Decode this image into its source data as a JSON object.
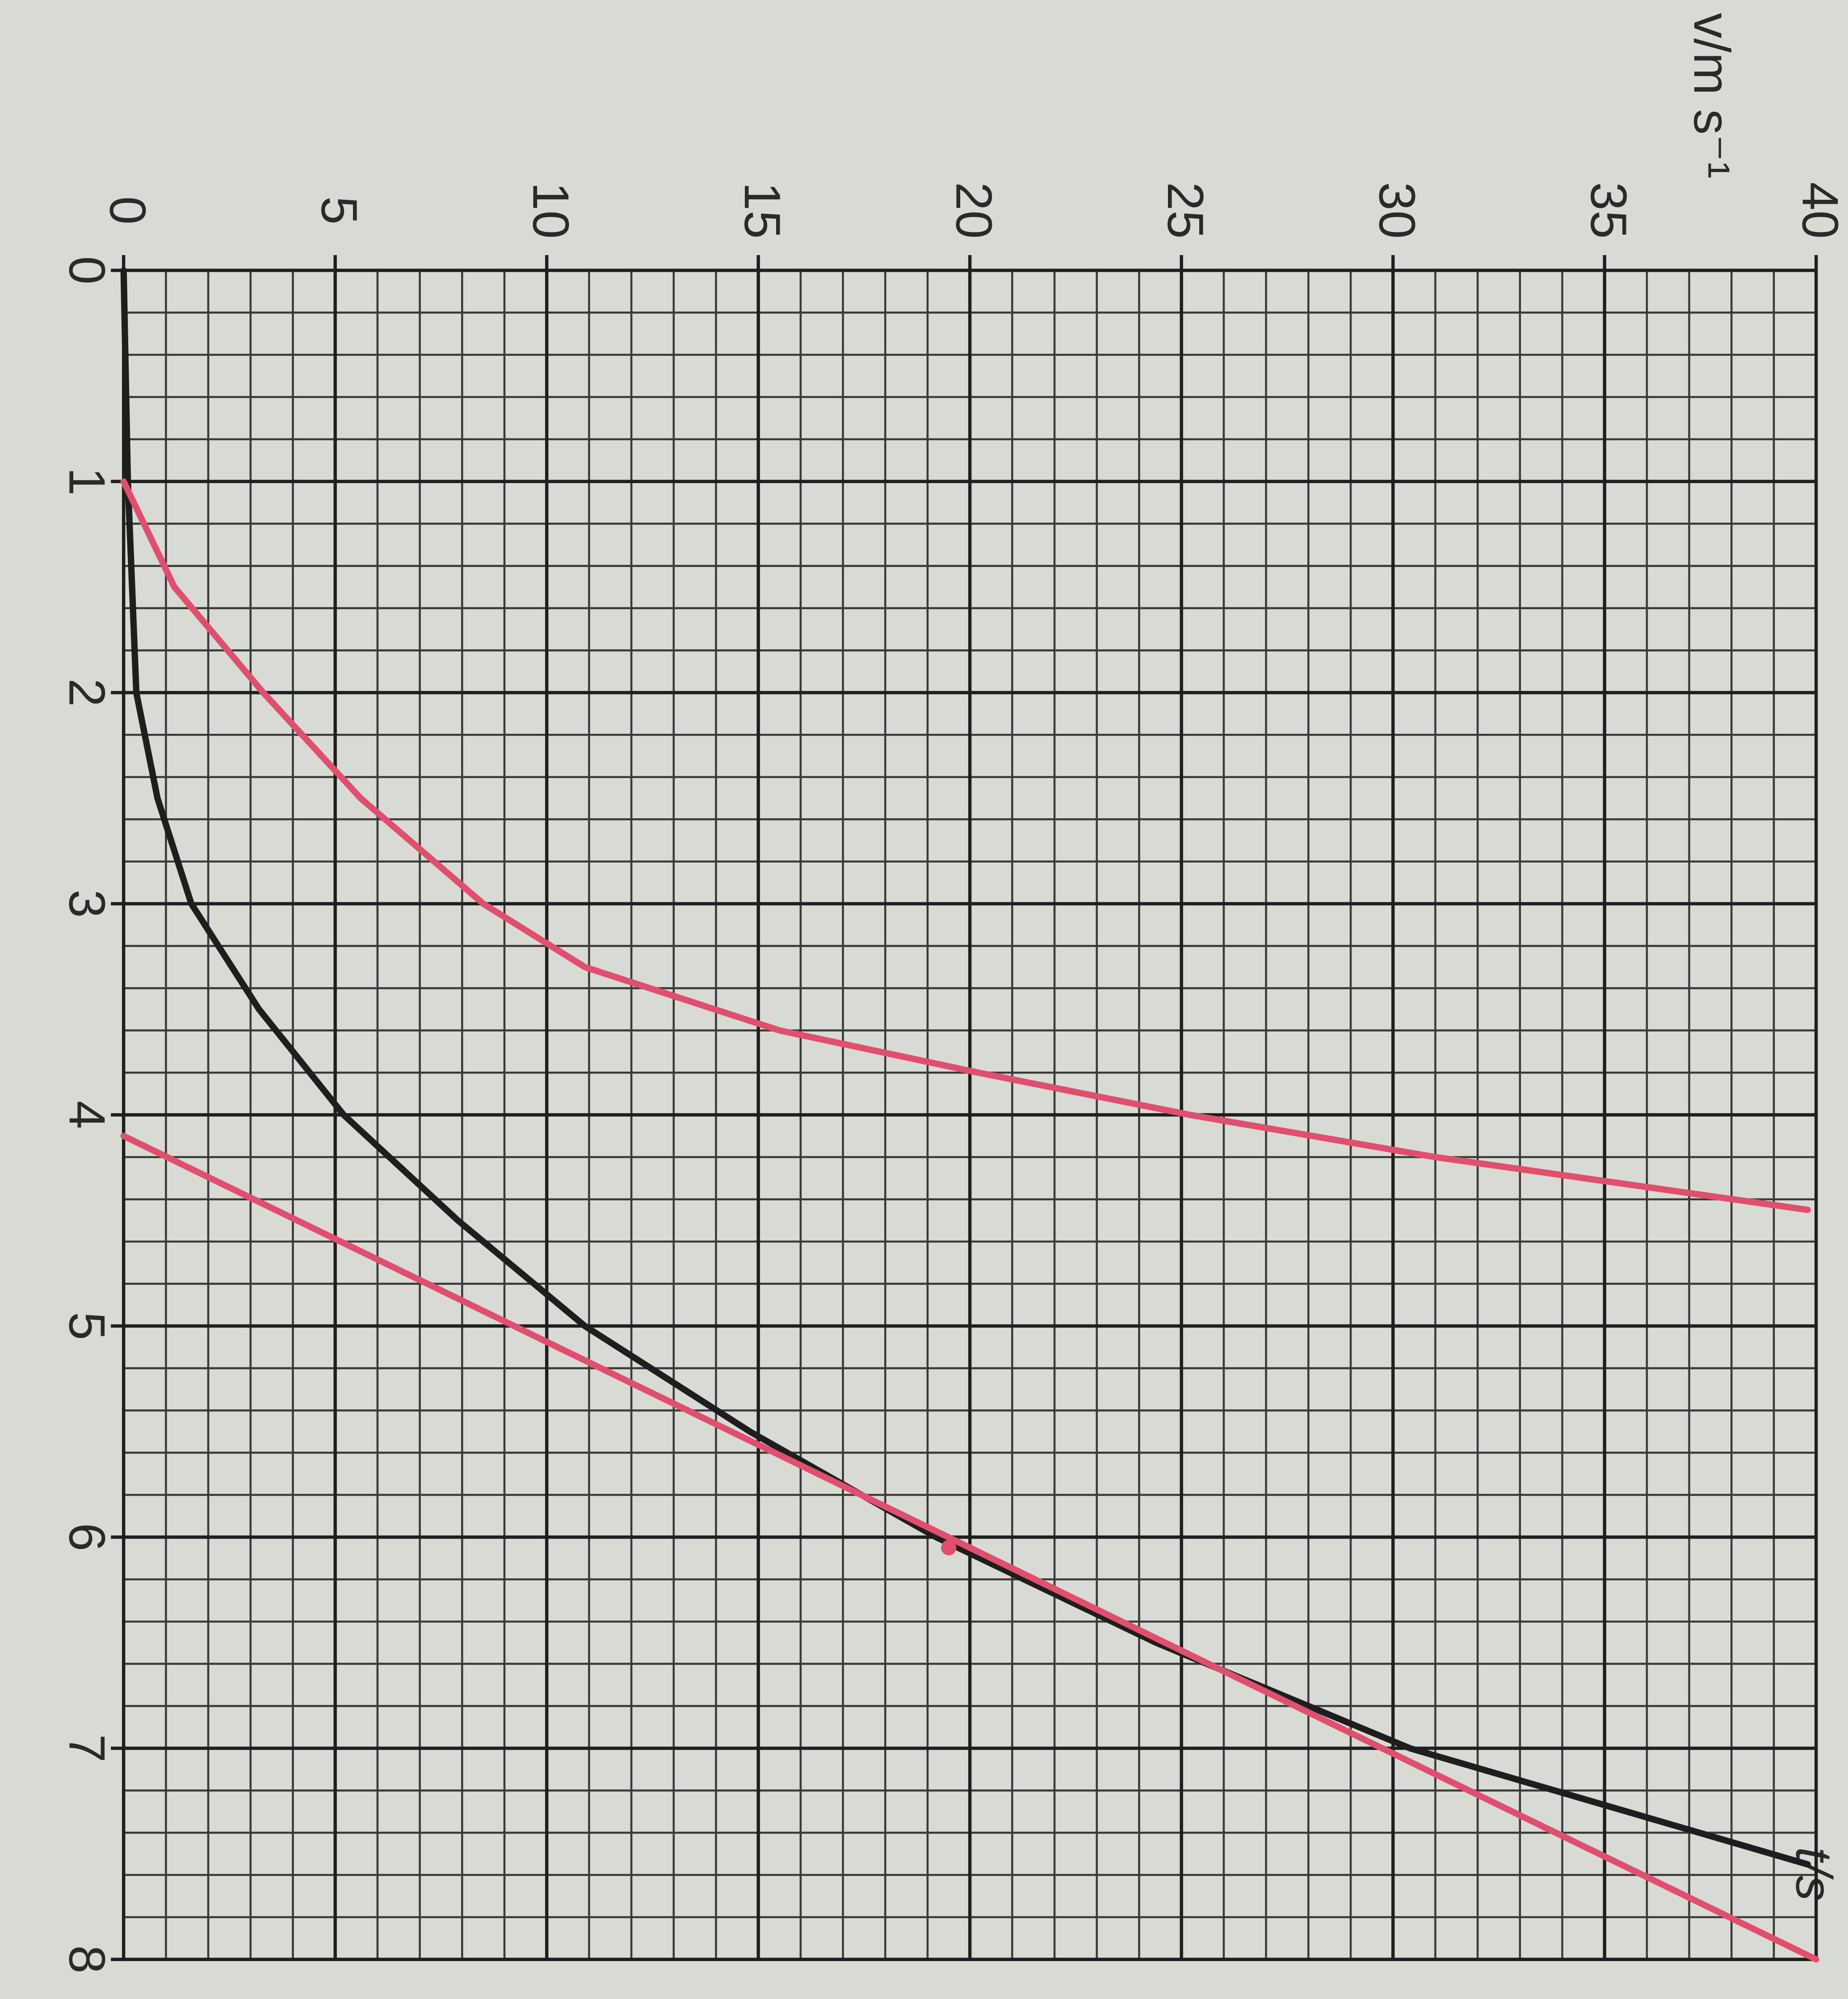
{
  "chart_data": {
    "type": "line",
    "xlabel": "t/s",
    "ylabel": "v/m s⁻¹",
    "xlim": [
      0,
      8
    ],
    "xticks": [
      0,
      1,
      2,
      3,
      4,
      5,
      6,
      7,
      8
    ],
    "ylim": [
      0,
      40
    ],
    "yticks": [
      0,
      5,
      10,
      15,
      20,
      25,
      30,
      35,
      40
    ],
    "grid": true,
    "series": [
      {
        "color": "#1e1e1e",
        "x": [
          0,
          1,
          2,
          2.5,
          3,
          3.5,
          4,
          4.5,
          5,
          5.5,
          6,
          6.5,
          7,
          7.55
        ],
        "values": [
          0,
          0.1,
          0.3,
          0.8,
          1.6,
          3.2,
          5.2,
          7.9,
          10.9,
          14.8,
          19.2,
          24.4,
          30.4,
          39.8
        ]
      },
      {
        "color": "#e0506e",
        "x": [
          1,
          1.5,
          2,
          2.5,
          3,
          3.3,
          3.6,
          3.8,
          4,
          4.2,
          4.45
        ],
        "values": [
          0,
          1.2,
          3.3,
          5.6,
          8.5,
          10.9,
          15.5,
          20.2,
          25.2,
          31,
          39.8
        ]
      },
      {
        "color": "#e0506e",
        "x": [
          4.1,
          8
        ],
        "values": [
          0,
          40
        ]
      },
      {
        "color": "#e0506e",
        "marker": true,
        "x": [
          6.05
        ],
        "values": [
          19.5
        ]
      }
    ]
  }
}
